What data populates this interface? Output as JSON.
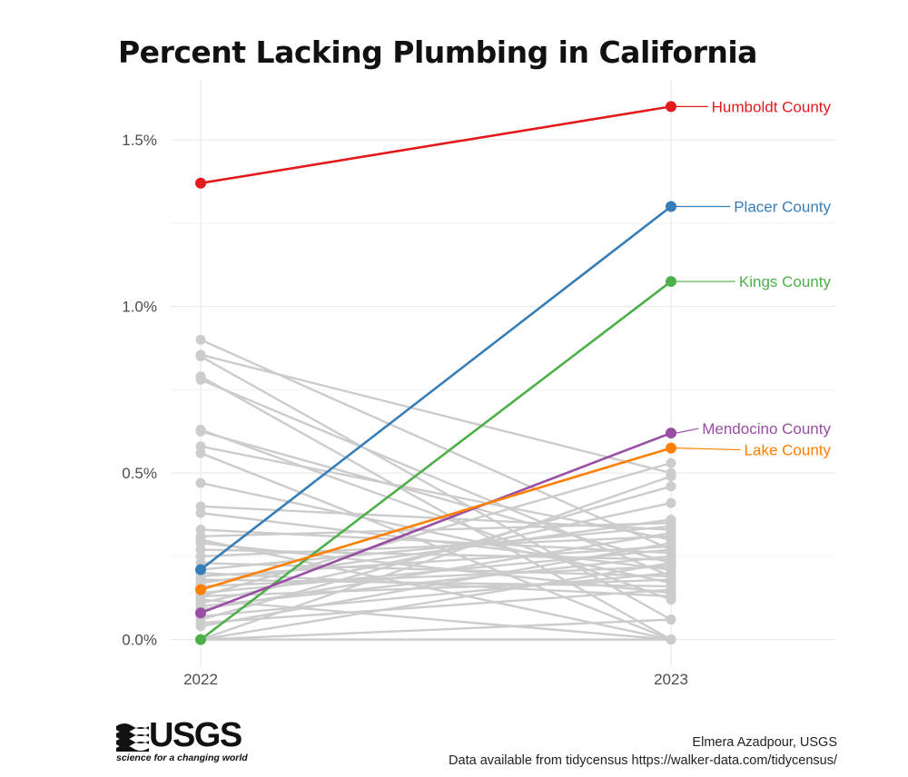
{
  "chart_data": {
    "type": "line",
    "title": "Percent Lacking Plumbing in California",
    "categories": [
      "2022",
      "2023"
    ],
    "ylim": [
      -0.08,
      1.68
    ],
    "yticks": [
      0.0,
      0.5,
      1.0,
      1.5
    ],
    "ytick_labels": [
      "0.0%",
      "0.5%",
      "1.0%",
      "1.5%"
    ],
    "grid": true,
    "highlighted": [
      {
        "name": "Humboldt County",
        "values": [
          1.37,
          1.6
        ],
        "color": "#e31a1c"
      },
      {
        "name": "Placer County",
        "values": [
          0.21,
          1.3
        ],
        "color": "#377eb8"
      },
      {
        "name": "Kings County",
        "values": [
          0.0,
          1.075
        ],
        "color": "#4daf4a"
      },
      {
        "name": "Mendocino County",
        "values": [
          0.08,
          0.62
        ],
        "color": "#984ea3"
      },
      {
        "name": "Lake County",
        "values": [
          0.15,
          0.575
        ],
        "color": "#ff7f00"
      }
    ],
    "background_color": "#cccccc",
    "background_series": [
      [
        0.9,
        0.27
      ],
      [
        0.855,
        0.5
      ],
      [
        0.85,
        0.06
      ],
      [
        0.79,
        0.0
      ],
      [
        0.78,
        0.19
      ],
      [
        0.63,
        0.12
      ],
      [
        0.625,
        0.23
      ],
      [
        0.58,
        0.3
      ],
      [
        0.56,
        0.0
      ],
      [
        0.47,
        0.17
      ],
      [
        0.4,
        0.33
      ],
      [
        0.38,
        0.21
      ],
      [
        0.33,
        0.26
      ],
      [
        0.31,
        0.35
      ],
      [
        0.3,
        0.0
      ],
      [
        0.29,
        0.14
      ],
      [
        0.27,
        0.24
      ],
      [
        0.25,
        0.31
      ],
      [
        0.23,
        0.19
      ],
      [
        0.21,
        0.34
      ],
      [
        0.2,
        0.13
      ],
      [
        0.19,
        0.28
      ],
      [
        0.18,
        0.16
      ],
      [
        0.17,
        0.36
      ],
      [
        0.16,
        0.22
      ],
      [
        0.14,
        0.27
      ],
      [
        0.13,
        0.53
      ],
      [
        0.13,
        0.18
      ],
      [
        0.12,
        0.0
      ],
      [
        0.11,
        0.41
      ],
      [
        0.1,
        0.25
      ],
      [
        0.09,
        0.32
      ],
      [
        0.07,
        0.2
      ],
      [
        0.06,
        0.46
      ],
      [
        0.05,
        0.15
      ],
      [
        0.04,
        0.29
      ],
      [
        0.0,
        0.49
      ],
      [
        0.0,
        0.06
      ],
      [
        0.0,
        0.0
      ],
      [
        0.0,
        0.23
      ]
    ]
  },
  "footer": {
    "logo_word": "USGS",
    "logo_tagline": "science for a changing world",
    "credit": "Elmera Azadpour, USGS",
    "source": "Data available from tidycensus https://walker-data.com/tidycensus/"
  }
}
